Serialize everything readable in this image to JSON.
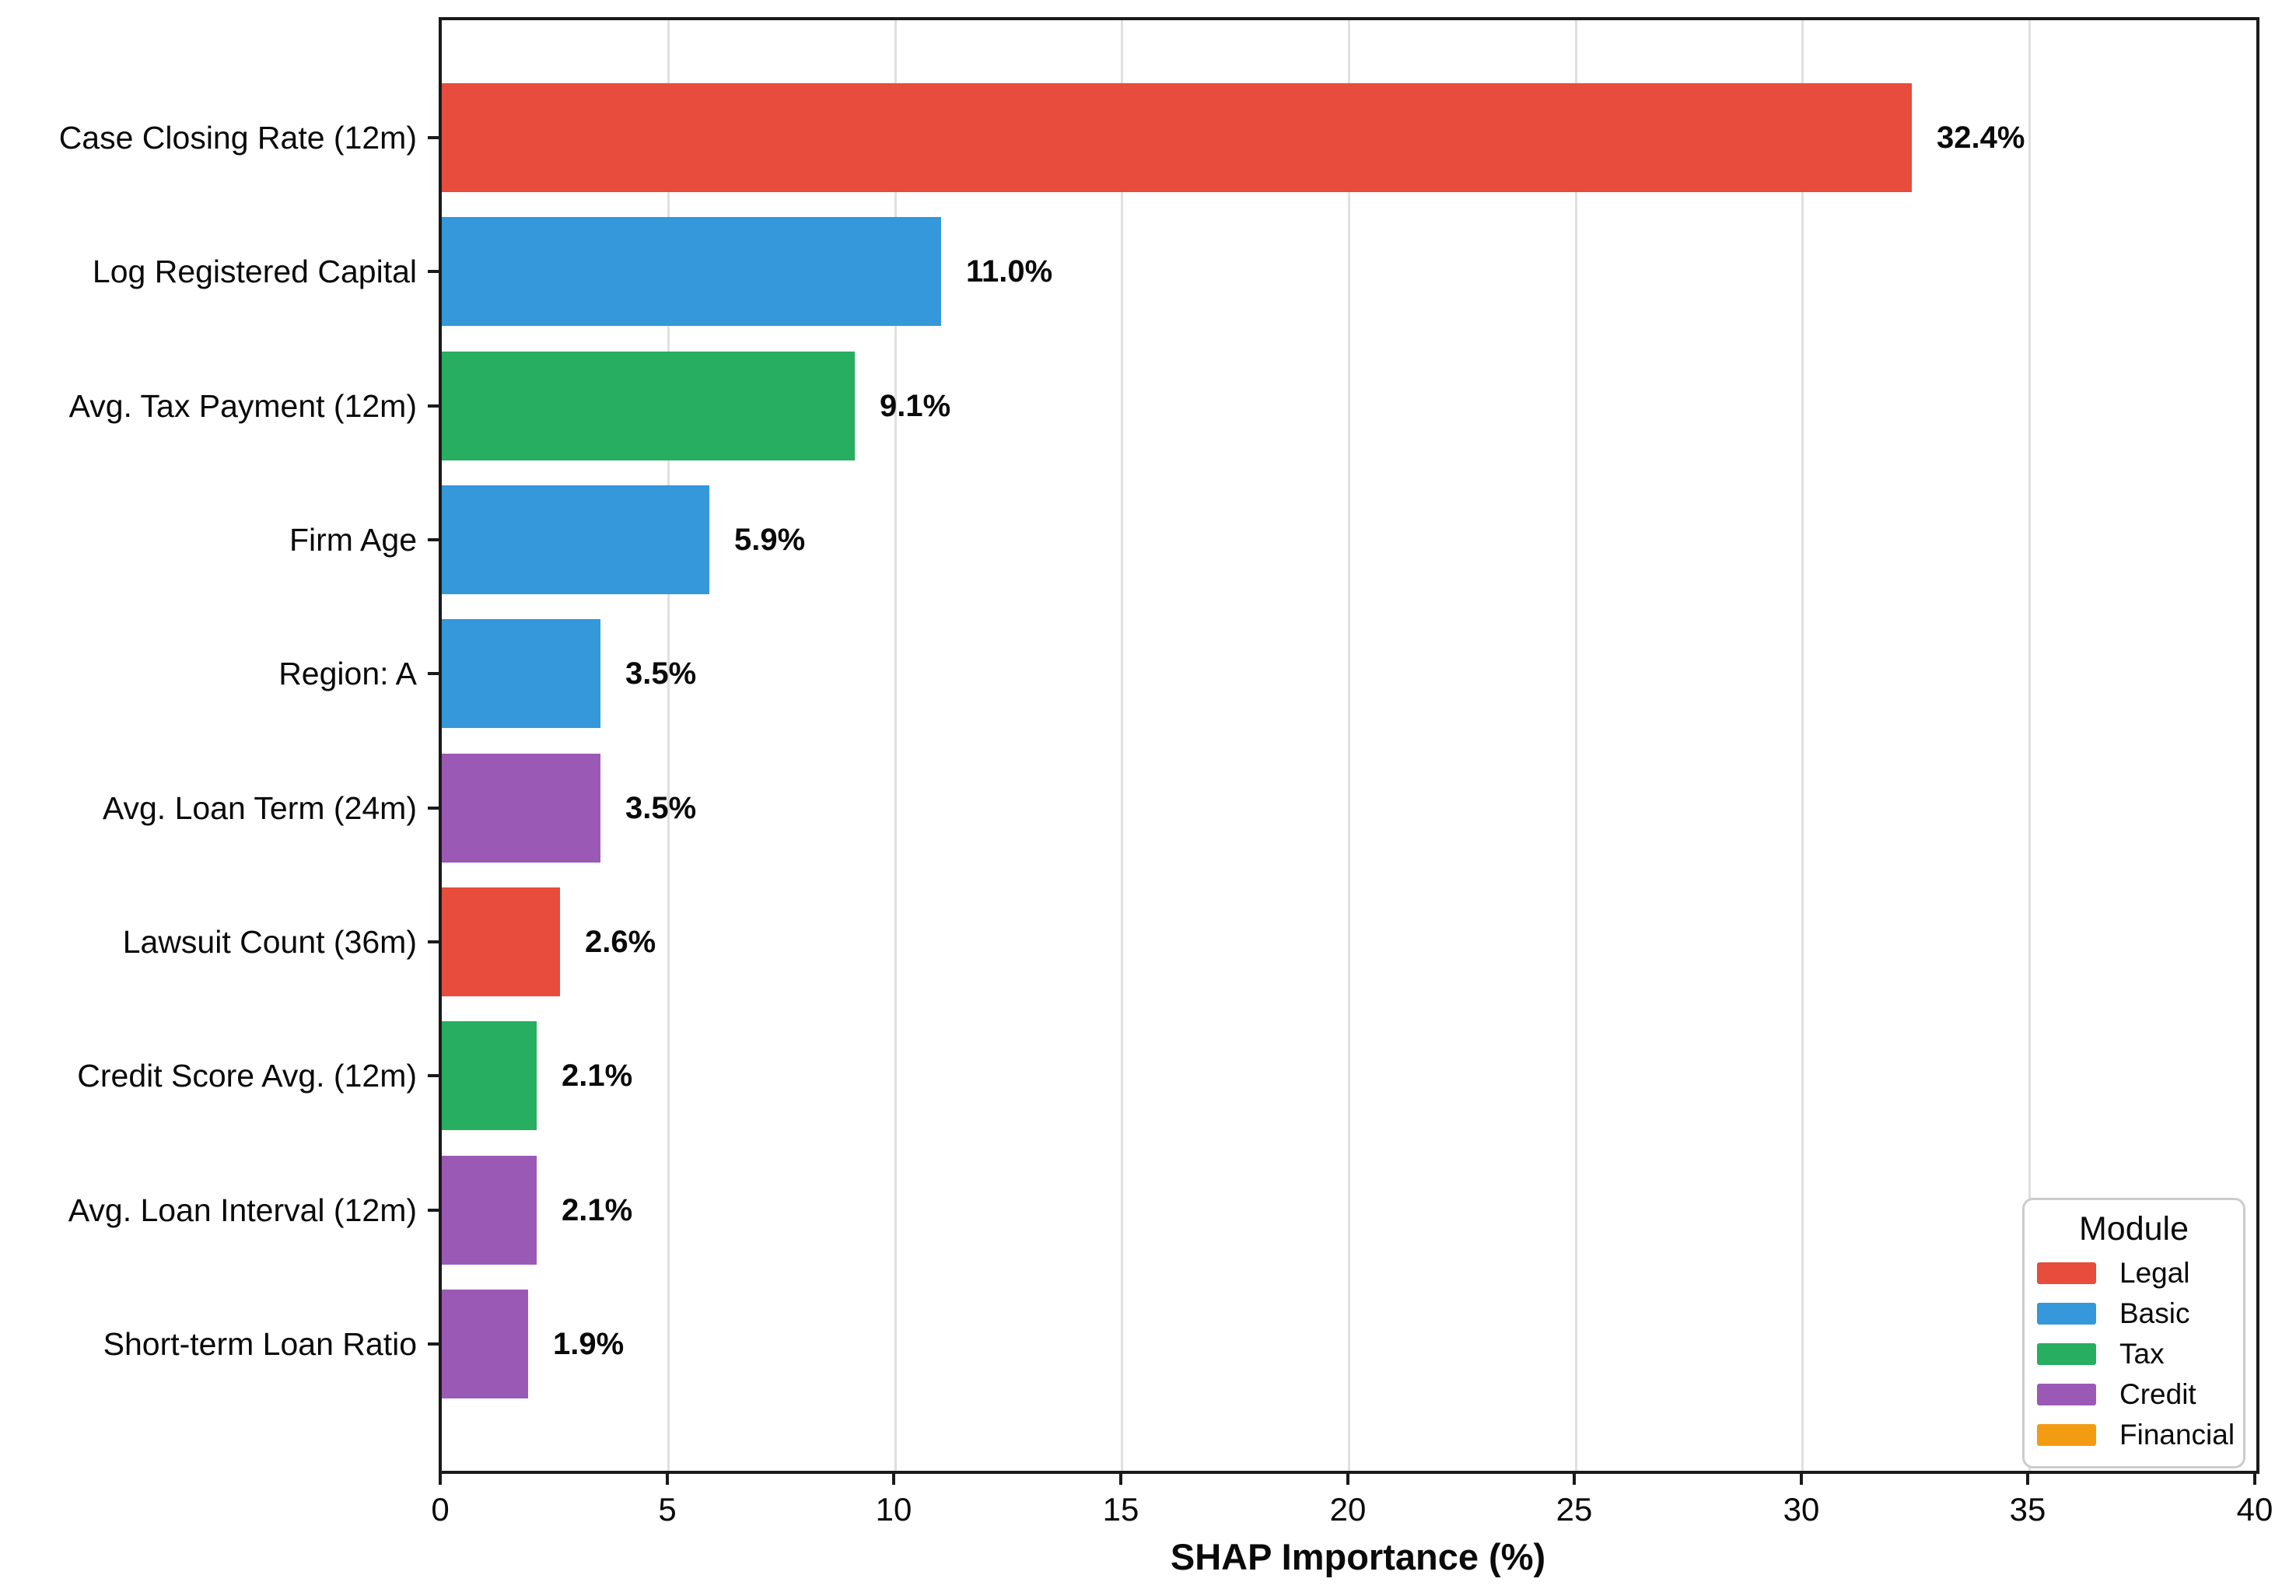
{
  "chart_data": {
    "type": "bar",
    "orientation": "horizontal",
    "xlabel": "SHAP Importance (%)",
    "ylabel": "",
    "xlim": [
      0,
      40
    ],
    "x_ticks": [
      0,
      5,
      10,
      15,
      20,
      25,
      30,
      35,
      40
    ],
    "grid": "vertical-light",
    "categories": [
      "Case Closing Rate (12m)",
      "Log Registered Capital",
      "Avg. Tax Payment (12m)",
      "Firm Age",
      "Region: A",
      "Avg. Loan Term (24m)",
      "Lawsuit Count (36m)",
      "Credit Score Avg. (12m)",
      "Avg. Loan Interval (12m)",
      "Short-term Loan Ratio"
    ],
    "values": [
      32.4,
      11.0,
      9.1,
      5.9,
      3.5,
      3.5,
      2.6,
      2.1,
      2.1,
      1.9
    ],
    "value_labels": [
      "32.4%",
      "11.0%",
      "9.1%",
      "5.9%",
      "3.5%",
      "3.5%",
      "2.6%",
      "2.1%",
      "2.1%",
      "1.9%"
    ],
    "bar_modules": [
      "Legal",
      "Basic",
      "Tax",
      "Basic",
      "Basic",
      "Credit",
      "Legal",
      "Tax",
      "Credit",
      "Credit"
    ],
    "module_colors": {
      "Legal": "#e74c3c",
      "Basic": "#3498db",
      "Tax": "#27ae60",
      "Credit": "#9b59b6",
      "Financial": "#f39c12"
    },
    "legend": {
      "title": "Module",
      "position": "lower-right",
      "entries": [
        {
          "label": "Legal",
          "color": "#e74c3c"
        },
        {
          "label": "Basic",
          "color": "#3498db"
        },
        {
          "label": "Tax",
          "color": "#27ae60"
        },
        {
          "label": "Credit",
          "color": "#9b59b6"
        },
        {
          "label": "Financial",
          "color": "#f39c12"
        }
      ]
    }
  }
}
